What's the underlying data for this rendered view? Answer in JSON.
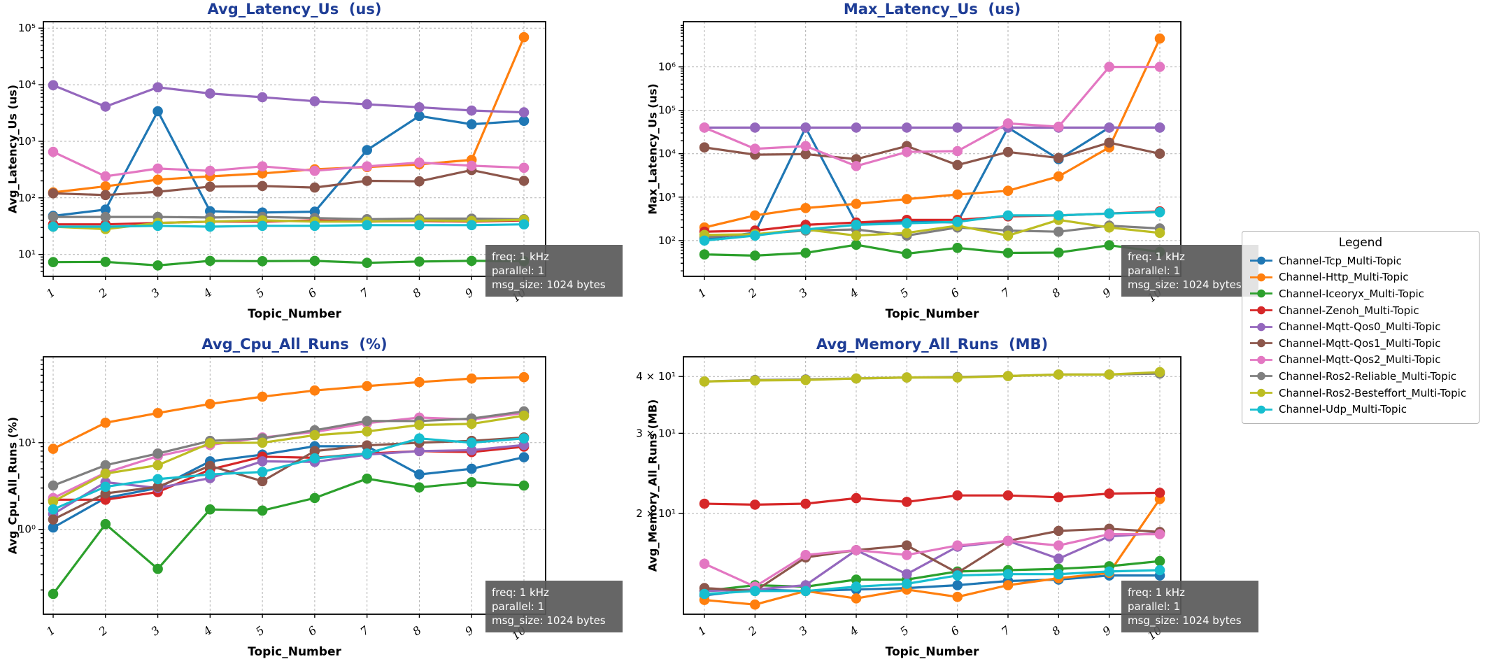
{
  "page": {
    "background": "#ffffff",
    "title_color": "#1e3d96"
  },
  "legend": {
    "title": "Legend",
    "items": [
      {
        "label": "Channel-Tcp_Multi-Topic",
        "color": "#1f77b4"
      },
      {
        "label": "Channel-Http_Multi-Topic",
        "color": "#ff7f0e"
      },
      {
        "label": "Channel-Iceoryx_Multi-Topic",
        "color": "#2ca02c"
      },
      {
        "label": "Channel-Zenoh_Multi-Topic",
        "color": "#d62728"
      },
      {
        "label": "Channel-Mqtt-Qos0_Multi-Topic",
        "color": "#9467bd"
      },
      {
        "label": "Channel-Mqtt-Qos1_Multi-Topic",
        "color": "#8c564b"
      },
      {
        "label": "Channel-Mqtt-Qos2_Multi-Topic",
        "color": "#e377c2"
      },
      {
        "label": "Channel-Ros2-Reliable_Multi-Topic",
        "color": "#7f7f7f"
      },
      {
        "label": "Channel-Ros2-Besteffort_Multi-Topic",
        "color": "#bcbd22"
      },
      {
        "label": "Channel-Udp_Multi-Topic",
        "color": "#17becf"
      }
    ]
  },
  "note": {
    "lines": [
      "freq: 1 kHz",
      "parallel: 1",
      "msg_size: 1024 bytes"
    ]
  },
  "chart_data": [
    {
      "type": "line",
      "title": "Avg_Latency_Us  (us)",
      "xlabel": "Topic_Number",
      "ylabel": "Avg_Latency_Us (us)",
      "yscale": "log",
      "grid": true,
      "legend_position": "outside-right",
      "x": [
        1,
        2,
        3,
        4,
        5,
        6,
        7,
        8,
        9,
        10
      ],
      "ylim": [
        4.1,
        130000
      ],
      "yticks": [
        {
          "v": 10,
          "label": "10¹"
        },
        {
          "v": 100,
          "label": "10²"
        },
        {
          "v": 1000,
          "label": "10³"
        },
        {
          "v": 10000,
          "label": "10⁴"
        },
        {
          "v": 100000,
          "label": "10⁵"
        }
      ],
      "series": [
        {
          "name": "Channel-Tcp_Multi-Topic",
          "color": "#1f77b4",
          "values": [
            48,
            62,
            3400,
            58,
            55,
            57,
            700,
            2800,
            2000,
            2300
          ]
        },
        {
          "name": "Channel-Http_Multi-Topic",
          "color": "#ff7f0e",
          "values": [
            125,
            160,
            210,
            240,
            270,
            320,
            350,
            390,
            470,
            69000
          ]
        },
        {
          "name": "Channel-Iceoryx_Multi-Topic",
          "color": "#2ca02c",
          "values": [
            7.3,
            7.4,
            6.4,
            7.7,
            7.6,
            7.7,
            7.1,
            7.5,
            7.7,
            7.6
          ]
        },
        {
          "name": "Channel-Zenoh_Multi-Topic",
          "color": "#d62728",
          "values": [
            34,
            34,
            36,
            38,
            38,
            40,
            38,
            39,
            38,
            40
          ]
        },
        {
          "name": "Channel-Mqtt-Qos0_Multi-Topic",
          "color": "#9467bd",
          "values": [
            9800,
            4100,
            9000,
            7000,
            6000,
            5100,
            4500,
            4000,
            3500,
            3250
          ]
        },
        {
          "name": "Channel-Mqtt-Qos1_Multi-Topic",
          "color": "#8c564b",
          "values": [
            120,
            112,
            128,
            158,
            162,
            152,
            200,
            196,
            310,
            200
          ]
        },
        {
          "name": "Channel-Mqtt-Qos2_Multi-Topic",
          "color": "#e377c2",
          "values": [
            650,
            240,
            330,
            300,
            360,
            300,
            360,
            420,
            370,
            340
          ]
        },
        {
          "name": "Channel-Ros2-Reliable_Multi-Topic",
          "color": "#7f7f7f",
          "values": [
            46,
            46,
            46,
            45,
            46,
            44,
            42,
            43,
            43,
            42
          ]
        },
        {
          "name": "Channel-Ros2-Besteffort_Multi-Topic",
          "color": "#bcbd22",
          "values": [
            31,
            28,
            36,
            38,
            40,
            38,
            38,
            40,
            39,
            41
          ]
        },
        {
          "name": "Channel-Udp_Multi-Topic",
          "color": "#17becf",
          "values": [
            31,
            31,
            32,
            31,
            32,
            32,
            33,
            33,
            33,
            34
          ]
        }
      ]
    },
    {
      "type": "line",
      "title": "Max_Latency_Us  (us)",
      "xlabel": "Topic_Number",
      "ylabel": "Max_Latency_Us (us)",
      "yscale": "log",
      "grid": true,
      "x": [
        1,
        2,
        3,
        4,
        5,
        6,
        7,
        8,
        9,
        10
      ],
      "ylim": [
        15,
        11000000
      ],
      "yticks": [
        {
          "v": 100,
          "label": "10²"
        },
        {
          "v": 1000,
          "label": "10³"
        },
        {
          "v": 10000,
          "label": "10⁴"
        },
        {
          "v": 100000,
          "label": "10⁵"
        },
        {
          "v": 1000000,
          "label": "10⁶"
        }
      ],
      "series": [
        {
          "name": "Channel-Tcp_Multi-Topic",
          "color": "#1f77b4",
          "values": [
            110,
            150,
            40000,
            250,
            280,
            260,
            40000,
            7500,
            40000,
            40000
          ]
        },
        {
          "name": "Channel-Http_Multi-Topic",
          "color": "#ff7f0e",
          "values": [
            200,
            380,
            560,
            700,
            900,
            1150,
            1400,
            3000,
            14000,
            4500000
          ]
        },
        {
          "name": "Channel-Iceoryx_Multi-Topic",
          "color": "#2ca02c",
          "values": [
            48,
            45,
            52,
            80,
            50,
            68,
            52,
            53,
            78,
            55
          ]
        },
        {
          "name": "Channel-Zenoh_Multi-Topic",
          "color": "#d62728",
          "values": [
            160,
            170,
            230,
            260,
            300,
            300,
            360,
            380,
            420,
            470
          ]
        },
        {
          "name": "Channel-Mqtt-Qos0_Multi-Topic",
          "color": "#9467bd",
          "values": [
            40000,
            40000,
            40000,
            40000,
            40000,
            40000,
            40000,
            40000,
            40000,
            40000
          ]
        },
        {
          "name": "Channel-Mqtt-Qos1_Multi-Topic",
          "color": "#8c564b",
          "values": [
            14000,
            9500,
            9800,
            7500,
            15000,
            5500,
            11000,
            8000,
            18000,
            10000
          ]
        },
        {
          "name": "Channel-Mqtt-Qos2_Multi-Topic",
          "color": "#e377c2",
          "values": [
            40000,
            13000,
            15000,
            5200,
            11000,
            11500,
            50000,
            42000,
            1000000,
            1000000
          ]
        },
        {
          "name": "Channel-Ros2-Reliable_Multi-Topic",
          "color": "#7f7f7f",
          "values": [
            120,
            140,
            170,
            180,
            130,
            200,
            170,
            160,
            220,
            190
          ]
        },
        {
          "name": "Channel-Ros2-Besteffort_Multi-Topic",
          "color": "#bcbd22",
          "values": [
            135,
            140,
            180,
            130,
            150,
            220,
            130,
            300,
            200,
            150
          ]
        },
        {
          "name": "Channel-Udp_Multi-Topic",
          "color": "#17becf",
          "values": [
            100,
            130,
            180,
            230,
            250,
            270,
            380,
            380,
            420,
            450
          ]
        }
      ]
    },
    {
      "type": "line",
      "title": "Avg_Cpu_All_Runs  (%)",
      "xlabel": "Topic_Number",
      "ylabel": "Avg_Cpu_All_Runs (%)",
      "yscale": "log",
      "grid": true,
      "x": [
        1,
        2,
        3,
        4,
        5,
        6,
        7,
        8,
        9,
        10
      ],
      "ylim": [
        0.105,
        98
      ],
      "yticks": [
        {
          "v": 1,
          "label": "10⁰"
        },
        {
          "v": 10,
          "label": "10¹"
        }
      ],
      "series": [
        {
          "name": "Channel-Tcp_Multi-Topic",
          "color": "#1f77b4",
          "values": [
            1.05,
            2.3,
            3.0,
            6.1,
            7.3,
            9.1,
            9.1,
            4.3,
            5.0,
            6.8
          ]
        },
        {
          "name": "Channel-Http_Multi-Topic",
          "color": "#ff7f0e",
          "values": [
            8.5,
            17,
            22,
            28,
            34,
            40,
            45,
            50,
            55,
            57
          ]
        },
        {
          "name": "Channel-Iceoryx_Multi-Topic",
          "color": "#2ca02c",
          "values": [
            0.18,
            1.15,
            0.35,
            1.7,
            1.65,
            2.3,
            3.85,
            3.05,
            3.5,
            3.2
          ]
        },
        {
          "name": "Channel-Zenoh_Multi-Topic",
          "color": "#d62728",
          "values": [
            2.2,
            2.2,
            2.7,
            4.9,
            6.9,
            6.7,
            7.5,
            8.0,
            7.8,
            9.0
          ]
        },
        {
          "name": "Channel-Mqtt-Qos0_Multi-Topic",
          "color": "#9467bd",
          "values": [
            1.5,
            3.5,
            3.0,
            3.9,
            6.1,
            6.0,
            7.3,
            8.0,
            8.2,
            9.4
          ]
        },
        {
          "name": "Channel-Mqtt-Qos1_Multi-Topic",
          "color": "#8c564b",
          "values": [
            1.3,
            2.6,
            3.1,
            5.4,
            3.6,
            8.0,
            9.3,
            10,
            10.5,
            11.5
          ]
        },
        {
          "name": "Channel-Mqtt-Qos2_Multi-Topic",
          "color": "#e377c2",
          "values": [
            2.3,
            4.5,
            7.0,
            9.4,
            11.5,
            13.3,
            16.8,
            19.5,
            18.5,
            22
          ]
        },
        {
          "name": "Channel-Ros2-Reliable_Multi-Topic",
          "color": "#7f7f7f",
          "values": [
            3.2,
            5.5,
            7.5,
            10.5,
            11.2,
            13.9,
            17.8,
            17.8,
            19,
            23
          ]
        },
        {
          "name": "Channel-Ros2-Besteffort_Multi-Topic",
          "color": "#bcbd22",
          "values": [
            2.1,
            4.4,
            5.5,
            9.9,
            10,
            12.2,
            13.5,
            16,
            16.5,
            20.5
          ]
        },
        {
          "name": "Channel-Udp_Multi-Topic",
          "color": "#17becf",
          "values": [
            1.7,
            3.1,
            3.8,
            4.3,
            4.6,
            6.6,
            7.5,
            11.2,
            10,
            11.2
          ]
        }
      ]
    },
    {
      "type": "line",
      "title": "Avg_Memory_All_Runs  (MB)",
      "xlabel": "Topic_Number",
      "ylabel": "Avg_Memory_All_Runs (MB)",
      "yscale": "log",
      "grid": true,
      "x": [
        1,
        2,
        3,
        4,
        5,
        6,
        7,
        8,
        9,
        10
      ],
      "ylim": [
        12.0,
        44.2
      ],
      "yticks": [
        {
          "v": 20,
          "label": "2 × 10¹"
        },
        {
          "v": 30,
          "label": "3 × 10¹"
        },
        {
          "v": 40,
          "label": "4 × 10¹"
        }
      ],
      "series": [
        {
          "name": "Channel-Tcp_Multi-Topic",
          "color": "#1f77b4",
          "values": [
            13.2,
            13.6,
            13.5,
            13.6,
            13.7,
            13.9,
            14.2,
            14.3,
            14.6,
            14.6
          ]
        },
        {
          "name": "Channel-Http_Multi-Topic",
          "color": "#ff7f0e",
          "values": [
            12.9,
            12.6,
            13.5,
            13.0,
            13.6,
            13.1,
            13.9,
            14.4,
            14.8,
            21.5
          ]
        },
        {
          "name": "Channel-Iceoryx_Multi-Topic",
          "color": "#2ca02c",
          "values": [
            13.5,
            13.9,
            13.8,
            14.3,
            14.3,
            14.9,
            15.0,
            15.1,
            15.3,
            15.7
          ]
        },
        {
          "name": "Channel-Zenoh_Multi-Topic",
          "color": "#d62728",
          "values": [
            21.0,
            20.9,
            21.0,
            21.6,
            21.2,
            21.9,
            21.9,
            21.7,
            22.1,
            22.2
          ]
        },
        {
          "name": "Channel-Mqtt-Qos0_Multi-Topic",
          "color": "#9467bd",
          "values": [
            13.5,
            13.6,
            13.9,
            16.6,
            14.7,
            16.9,
            17.4,
            15.9,
            17.8,
            18.1
          ]
        },
        {
          "name": "Channel-Mqtt-Qos1_Multi-Topic",
          "color": "#8c564b",
          "values": [
            13.7,
            13.5,
            16.0,
            16.6,
            17.0,
            14.8,
            17.4,
            18.3,
            18.5,
            18.2
          ]
        },
        {
          "name": "Channel-Mqtt-Qos2_Multi-Topic",
          "color": "#e377c2",
          "values": [
            15.5,
            13.8,
            16.2,
            16.6,
            16.2,
            17.0,
            17.4,
            17.0,
            18.0,
            18.0
          ]
        },
        {
          "name": "Channel-Ros2-Reliable_Multi-Topic",
          "color": "#7f7f7f",
          "values": [
            39.0,
            39.3,
            39.4,
            39.6,
            39.8,
            39.9,
            40.1,
            40.4,
            40.4,
            40.6
          ]
        },
        {
          "name": "Channel-Ros2-Besteffort_Multi-Topic",
          "color": "#bcbd22",
          "values": [
            39.0,
            39.2,
            39.3,
            39.6,
            39.8,
            39.8,
            40.1,
            40.4,
            40.4,
            40.9
          ]
        },
        {
          "name": "Channel-Udp_Multi-Topic",
          "color": "#17becf",
          "values": [
            13.3,
            13.5,
            13.5,
            13.8,
            14.0,
            14.6,
            14.7,
            14.7,
            14.9,
            15.0
          ]
        }
      ]
    }
  ]
}
